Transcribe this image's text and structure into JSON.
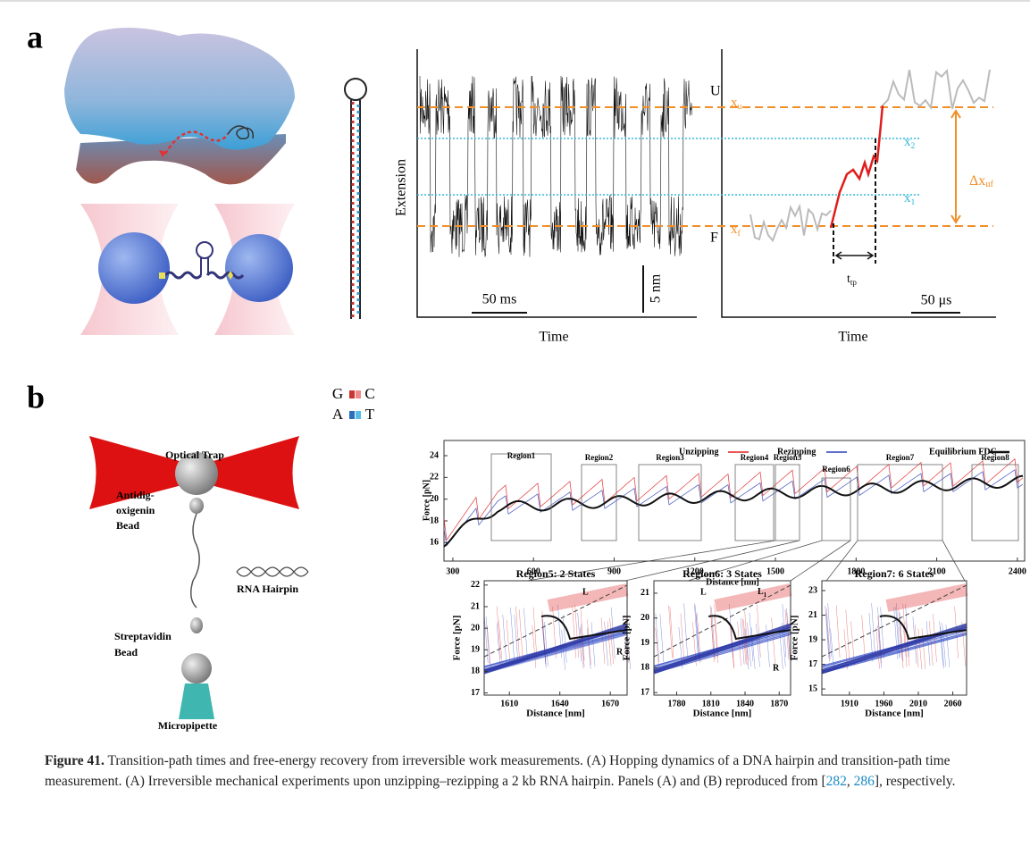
{
  "panel_a": {
    "label": "a",
    "base_pairs": {
      "left": [
        "G",
        "A"
      ],
      "right": [
        "C",
        "T"
      ]
    },
    "trace_1": {
      "y_label": "Extension",
      "x_label": "Time",
      "states": [
        "U",
        "F"
      ],
      "time_scale": "50 ms",
      "extension_scale": "5 nm"
    },
    "trace_2": {
      "x_label": "Time",
      "levels": [
        {
          "main": "x",
          "sub": "u"
        },
        {
          "main": "x",
          "sub": "2"
        },
        {
          "main": "x",
          "sub": "1"
        },
        {
          "main": "x",
          "sub": "f"
        }
      ],
      "delta": {
        "main": "Δx",
        "sub": "uf"
      },
      "transition": {
        "main": "t",
        "sub": "tp"
      },
      "time_scale": "50 μs"
    }
  },
  "panel_b": {
    "label": "b",
    "schematic": {
      "trap": "Optical Trap",
      "top_bead": [
        "Antidig-",
        "oxigenin",
        "Bead"
      ],
      "hairpin": "RNA Hairpin",
      "bottom_bead": [
        "Streptavidin",
        "Bead"
      ],
      "pipette": "Micropipette"
    },
    "main_plot": {
      "legend": [
        "Unzipping",
        "Rezipping",
        "Equilibrium FDC"
      ],
      "regions": [
        "Region1",
        "Region2",
        "Region3",
        "Region4",
        "Region5",
        "Region6",
        "Region7",
        "Region8"
      ],
      "x_label": "Distance [nm]",
      "y_label": "Force [pN]",
      "xlim": [
        267,
        2427
      ],
      "ylim": [
        14.3,
        25.4
      ],
      "xticks": [
        300,
        600,
        900,
        1200,
        1500,
        1800,
        2100,
        2400
      ],
      "yticks": [
        16,
        18,
        20,
        22,
        24
      ]
    },
    "insets": [
      {
        "title": "Region5: 2 States",
        "x_label": "Distance [nm]",
        "y_label": "Force [pN]",
        "xlim": [
          1595,
          1680
        ],
        "ylim": [
          16.9,
          22.2
        ],
        "xticks": [
          1610,
          1640,
          1670
        ],
        "yticks": [
          17,
          18,
          19,
          20,
          21,
          22
        ],
        "markers": [
          "L",
          "R"
        ]
      },
      {
        "title": "Region6: 3 States",
        "x_label": "Distance [nm]",
        "y_label": "Force [pN]",
        "xlim": [
          1760,
          1880
        ],
        "ylim": [
          16.9,
          21.5
        ],
        "xticks": [
          1780,
          1810,
          1840,
          1870
        ],
        "yticks": [
          17,
          18,
          19,
          20,
          21
        ],
        "markers": [
          "L",
          "L",
          "R"
        ],
        "marker_sub": "1"
      },
      {
        "title": "Region7: 6 States",
        "x_label": "Distance [nm]",
        "y_label": "Force [pN]",
        "xlim": [
          1870,
          2080
        ],
        "ylim": [
          14.5,
          23.8
        ],
        "xticks": [
          1910,
          1960,
          2010,
          2060
        ],
        "yticks": [
          15,
          17,
          19,
          21,
          23
        ]
      }
    ]
  },
  "caption": {
    "label": "Figure 41.",
    "text_1": " Transition-path times and free-energy recovery from irreversible work measurements. (A) Hopping dynamics of a DNA hairpin and transition-path time measurement. (A) Irreversible mechanical experiments upon unzipping–rezipping a 2 kb RNA hairpin. Panels (A) and (B) reproduced from [",
    "refs": [
      "282",
      "286"
    ],
    "separator": ", ",
    "text_2": "], respectively."
  }
}
